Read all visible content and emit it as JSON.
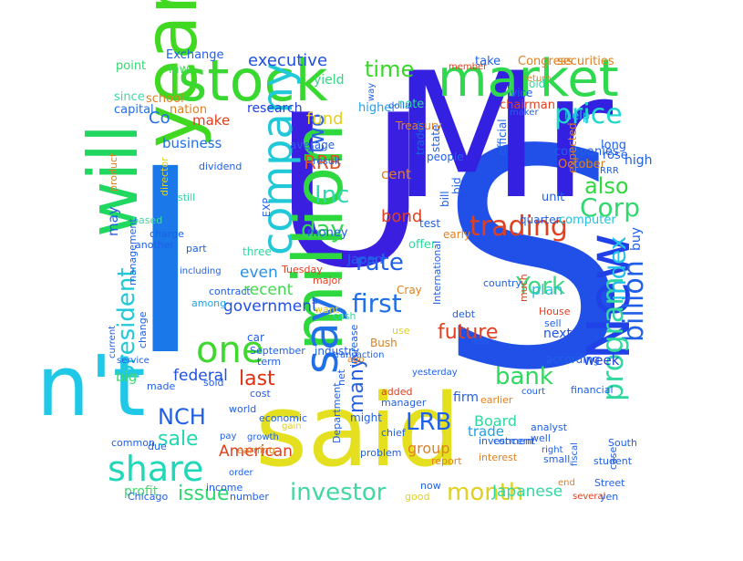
{
  "words": [
    {
      "text": "U",
      "color": "#3b1fe0"
    },
    {
      "text": "S",
      "color": "#2050e8"
    },
    {
      "text": "said",
      "color": "#e4e020"
    },
    {
      "text": "Mr",
      "color": "#3420e0"
    },
    {
      "text": "I",
      "color": "#1a78e8"
    },
    {
      "text": "year",
      "color": "#40d820"
    },
    {
      "text": "n't",
      "color": "#20c8e8"
    },
    {
      "text": "stock",
      "color": "#38d830"
    },
    {
      "text": "market",
      "color": "#30d850"
    },
    {
      "text": "will",
      "color": "#20d860"
    },
    {
      "text": "million",
      "color": "#30d840"
    },
    {
      "text": "New",
      "color": "#2040e8"
    },
    {
      "text": "say",
      "color": "#2070e8"
    },
    {
      "text": "company",
      "color": "#20c8d8"
    },
    {
      "text": "one",
      "color": "#40d830"
    },
    {
      "text": "share",
      "color": "#20d8b8"
    },
    {
      "text": "trading",
      "color": "#e04020"
    },
    {
      "text": "price",
      "color": "#20d8d0"
    },
    {
      "text": "billion",
      "color": "#2060e8"
    },
    {
      "text": "program",
      "color": "#30d8a0"
    },
    {
      "text": "first",
      "color": "#2070e8"
    },
    {
      "text": "Corp",
      "color": "#30d870"
    },
    {
      "text": "investor",
      "color": "#40d8a0"
    },
    {
      "text": "month",
      "color": "#e0d020"
    },
    {
      "text": "bank",
      "color": "#30d860"
    },
    {
      "text": "York",
      "color": "#40d880"
    },
    {
      "text": "also",
      "color": "#30d840"
    },
    {
      "text": "time",
      "color": "#38d828"
    },
    {
      "text": "rate",
      "color": "#2060e8"
    },
    {
      "text": "last",
      "color": "#e03010"
    },
    {
      "text": "president",
      "color": "#20c8d8"
    },
    {
      "text": "day",
      "color": "#30d850"
    },
    {
      "text": "Inc",
      "color": "#30d8b0"
    },
    {
      "text": "index",
      "color": "#20c0e8"
    },
    {
      "text": "two",
      "color": "#2860e0"
    },
    {
      "text": "many",
      "color": "#2860e0"
    },
    {
      "text": "NCH",
      "color": "#2060e8"
    },
    {
      "text": "sale",
      "color": "#20d8b0"
    },
    {
      "text": "LRB",
      "color": "#2060e8"
    },
    {
      "text": "issue",
      "color": "#30d870"
    },
    {
      "text": "RRB",
      "color": "#e05020"
    },
    {
      "text": "future",
      "color": "#e04020"
    },
    {
      "text": "executive",
      "color": "#2050e0"
    },
    {
      "text": "fund",
      "color": "#e0d020"
    },
    {
      "text": "Co",
      "color": "#2070e8"
    },
    {
      "text": "bond",
      "color": "#e04020"
    },
    {
      "text": "government",
      "color": "#2050e0"
    },
    {
      "text": "recent",
      "color": "#40d850"
    },
    {
      "text": "even",
      "color": "#2890e8"
    },
    {
      "text": "federal",
      "color": "#2050e0"
    },
    {
      "text": "American",
      "color": "#e04020"
    },
    {
      "text": "Japanese",
      "color": "#30d8a0"
    },
    {
      "text": "Board",
      "color": "#30d8a0"
    },
    {
      "text": "plan",
      "color": "#20c0e8"
    },
    {
      "text": "group",
      "color": "#e08020"
    },
    {
      "text": "trade",
      "color": "#20a0e8"
    },
    {
      "text": "business",
      "color": "#2070e8"
    },
    {
      "text": "make",
      "color": "#e04020"
    },
    {
      "text": "cent",
      "color": "#e08020"
    },
    {
      "text": "week",
      "color": "#2040e0"
    },
    {
      "text": "big",
      "color": "#40d870"
    },
    {
      "text": "may",
      "color": "#2060e8"
    },
    {
      "text": "high",
      "color": "#2060e8"
    },
    {
      "text": "profit",
      "color": "#40d870"
    },
    {
      "text": "firm",
      "color": "#2060e8"
    },
    {
      "text": "buy",
      "color": "#2060e8"
    },
    {
      "text": "Japan",
      "color": "#2060e8"
    },
    {
      "text": "next",
      "color": "#2050e0"
    },
    {
      "text": "research",
      "color": "#2040e0"
    },
    {
      "text": "yield",
      "color": "#30d880"
    },
    {
      "text": "money",
      "color": "#2060e8"
    },
    {
      "text": "higher",
      "color": "#20a0e8"
    },
    {
      "text": "note",
      "color": "#30d8a0"
    },
    {
      "text": "point",
      "color": "#30d870"
    },
    {
      "text": "capital",
      "color": "#2070e8"
    },
    {
      "text": "nation",
      "color": "#e08020"
    },
    {
      "text": "law",
      "color": "#40d850"
    },
    {
      "text": "since",
      "color": "#40d8a0"
    },
    {
      "text": "school",
      "color": "#e08020"
    },
    {
      "text": "Exchange",
      "color": "#2060e8"
    },
    {
      "text": "securities",
      "color": "#e08020"
    },
    {
      "text": "take",
      "color": "#2060e8"
    },
    {
      "text": "Congress",
      "color": "#e08020"
    },
    {
      "text": "chairman",
      "color": "#e04020"
    },
    {
      "text": "vice",
      "color": "#2060e8"
    },
    {
      "text": "old",
      "color": "#30d8a0"
    },
    {
      "text": "companies",
      "color": "#2060e8"
    },
    {
      "text": "help",
      "color": "#20c0e8"
    },
    {
      "text": "long",
      "color": "#2060e8"
    },
    {
      "text": "rose",
      "color": "#2060e8"
    },
    {
      "text": "October",
      "color": "#e08020"
    },
    {
      "text": "expected",
      "color": "#e08020"
    },
    {
      "text": "unit",
      "color": "#2060e8"
    },
    {
      "text": "computer",
      "color": "#20c0e8"
    },
    {
      "text": "quarter",
      "color": "#2060e8"
    },
    {
      "text": "early",
      "color": "#e08020"
    },
    {
      "text": "test",
      "color": "#2060e8"
    },
    {
      "text": "offer",
      "color": "#30d8a0"
    },
    {
      "text": "Treasury",
      "color": "#e08020"
    },
    {
      "text": "trader",
      "color": "#2060e8"
    },
    {
      "text": "state",
      "color": "#2060e8"
    },
    {
      "text": "people",
      "color": "#2060e8"
    },
    {
      "text": "bill",
      "color": "#2060e8"
    },
    {
      "text": "bid",
      "color": "#2060e8"
    },
    {
      "text": "official",
      "color": "#2060e8"
    },
    {
      "text": "average",
      "color": "#2060e8"
    },
    {
      "text": "EXP",
      "color": "#2060e8"
    },
    {
      "text": "result",
      "color": "#2060e8"
    },
    {
      "text": "dividend",
      "color": "#2060e8"
    },
    {
      "text": "product",
      "color": "#e08020"
    },
    {
      "text": "director",
      "color": "#e0d020"
    },
    {
      "text": "still",
      "color": "#30d8a0"
    },
    {
      "text": "based",
      "color": "#40d8a0"
    },
    {
      "text": "another",
      "color": "#2060e8"
    },
    {
      "text": "charge",
      "color": "#2060e8"
    },
    {
      "text": "management",
      "color": "#2060e8"
    },
    {
      "text": "part",
      "color": "#2060e8"
    },
    {
      "text": "three",
      "color": "#30d8a0"
    },
    {
      "text": "Tuesday",
      "color": "#e04020"
    },
    {
      "text": "major",
      "color": "#e04020"
    },
    {
      "text": "contract",
      "color": "#2060e8"
    },
    {
      "text": "among",
      "color": "#20a0e8"
    },
    {
      "text": "Cray",
      "color": "#e08020"
    },
    {
      "text": "want",
      "color": "#e0d020"
    },
    {
      "text": "cash",
      "color": "#30d8a0"
    },
    {
      "text": "use",
      "color": "#e0d020"
    },
    {
      "text": "country",
      "color": "#2060e8"
    },
    {
      "text": "debt",
      "color": "#2060e8"
    },
    {
      "text": "much",
      "color": "#e04020"
    },
    {
      "text": "House",
      "color": "#e04020"
    },
    {
      "text": "sell",
      "color": "#2060e8"
    },
    {
      "text": "International",
      "color": "#2060e8"
    },
    {
      "text": "less",
      "color": "#2060e8"
    },
    {
      "text": "car",
      "color": "#2060e8"
    },
    {
      "text": "September",
      "color": "#2060e8"
    },
    {
      "text": "industry",
      "color": "#2060e8"
    },
    {
      "text": "term",
      "color": "#2060e8"
    },
    {
      "text": "Bush",
      "color": "#e08020"
    },
    {
      "text": "increase",
      "color": "#2060e8"
    },
    {
      "text": "yesterday",
      "color": "#2060e8"
    },
    {
      "text": "net",
      "color": "#2060e8"
    },
    {
      "text": "added",
      "color": "#e04020"
    },
    {
      "text": "according",
      "color": "#2060e8"
    },
    {
      "text": "financial",
      "color": "#2060e8"
    },
    {
      "text": "earlier",
      "color": "#e08020"
    },
    {
      "text": "manager",
      "color": "#2060e8"
    },
    {
      "text": "court",
      "color": "#2060e8"
    },
    {
      "text": "made",
      "color": "#2060e8"
    },
    {
      "text": "sold",
      "color": "#2060e8"
    },
    {
      "text": "cost",
      "color": "#2060e8"
    },
    {
      "text": "world",
      "color": "#2060e8"
    },
    {
      "text": "economic",
      "color": "#2060e8"
    },
    {
      "text": "gain",
      "color": "#e0d020"
    },
    {
      "text": "common",
      "color": "#2060e8"
    },
    {
      "text": "pay",
      "color": "#2060e8"
    },
    {
      "text": "growth",
      "color": "#2060e8"
    },
    {
      "text": "earning",
      "color": "#e08020"
    },
    {
      "text": "due",
      "color": "#2060e8"
    },
    {
      "text": "might",
      "color": "#2060e8"
    },
    {
      "text": "Department",
      "color": "#2060e8"
    },
    {
      "text": "report",
      "color": "#e08020"
    },
    {
      "text": "investment",
      "color": "#2060e8"
    },
    {
      "text": "analyst",
      "color": "#2060e8"
    },
    {
      "text": "well",
      "color": "#2060e8"
    },
    {
      "text": "right",
      "color": "#2060e8"
    },
    {
      "text": "small",
      "color": "#2060e8"
    },
    {
      "text": "fiscal",
      "color": "#2060e8"
    },
    {
      "text": "end",
      "color": "#e08020"
    },
    {
      "text": "several",
      "color": "#e04020"
    },
    {
      "text": "South",
      "color": "#2060e8"
    },
    {
      "text": "student",
      "color": "#2060e8"
    },
    {
      "text": "case",
      "color": "#2060e8"
    },
    {
      "text": "Street",
      "color": "#2060e8"
    },
    {
      "text": "yen",
      "color": "#2060e8"
    },
    {
      "text": "chief",
      "color": "#2060e8"
    },
    {
      "text": "interest",
      "color": "#e08020"
    },
    {
      "text": "concern",
      "color": "#2060e8"
    },
    {
      "text": "problem",
      "color": "#2060e8"
    },
    {
      "text": "now",
      "color": "#2060e8"
    },
    {
      "text": "good",
      "color": "#e0d020"
    },
    {
      "text": "income",
      "color": "#2060e8"
    },
    {
      "text": "number",
      "color": "#2060e8"
    },
    {
      "text": "order",
      "color": "#2060e8"
    },
    {
      "text": "Chicago",
      "color": "#2060e8"
    },
    {
      "text": "change",
      "color": "#2060e8"
    },
    {
      "text": "current",
      "color": "#2060e8"
    },
    {
      "text": "service",
      "color": "#2060e8"
    },
    {
      "text": "including",
      "color": "#2060e8"
    },
    {
      "text": "dollar",
      "color": "#2060e8"
    },
    {
      "text": "way",
      "color": "#2060e8"
    },
    {
      "text": "transaction",
      "color": "#2060e8"
    },
    {
      "text": "ago",
      "color": "#e08020"
    },
    {
      "text": "member",
      "color": "#e04020"
    },
    {
      "text": "return",
      "color": "#e08020"
    },
    {
      "text": "maker",
      "color": "#2060e8"
    },
    {
      "text": "RRR",
      "color": "#2060e8"
    },
    {
      "text": "spokesman",
      "color": "#e0d020"
    },
    {
      "text": "six",
      "color": "#2060e8"
    }
  ]
}
